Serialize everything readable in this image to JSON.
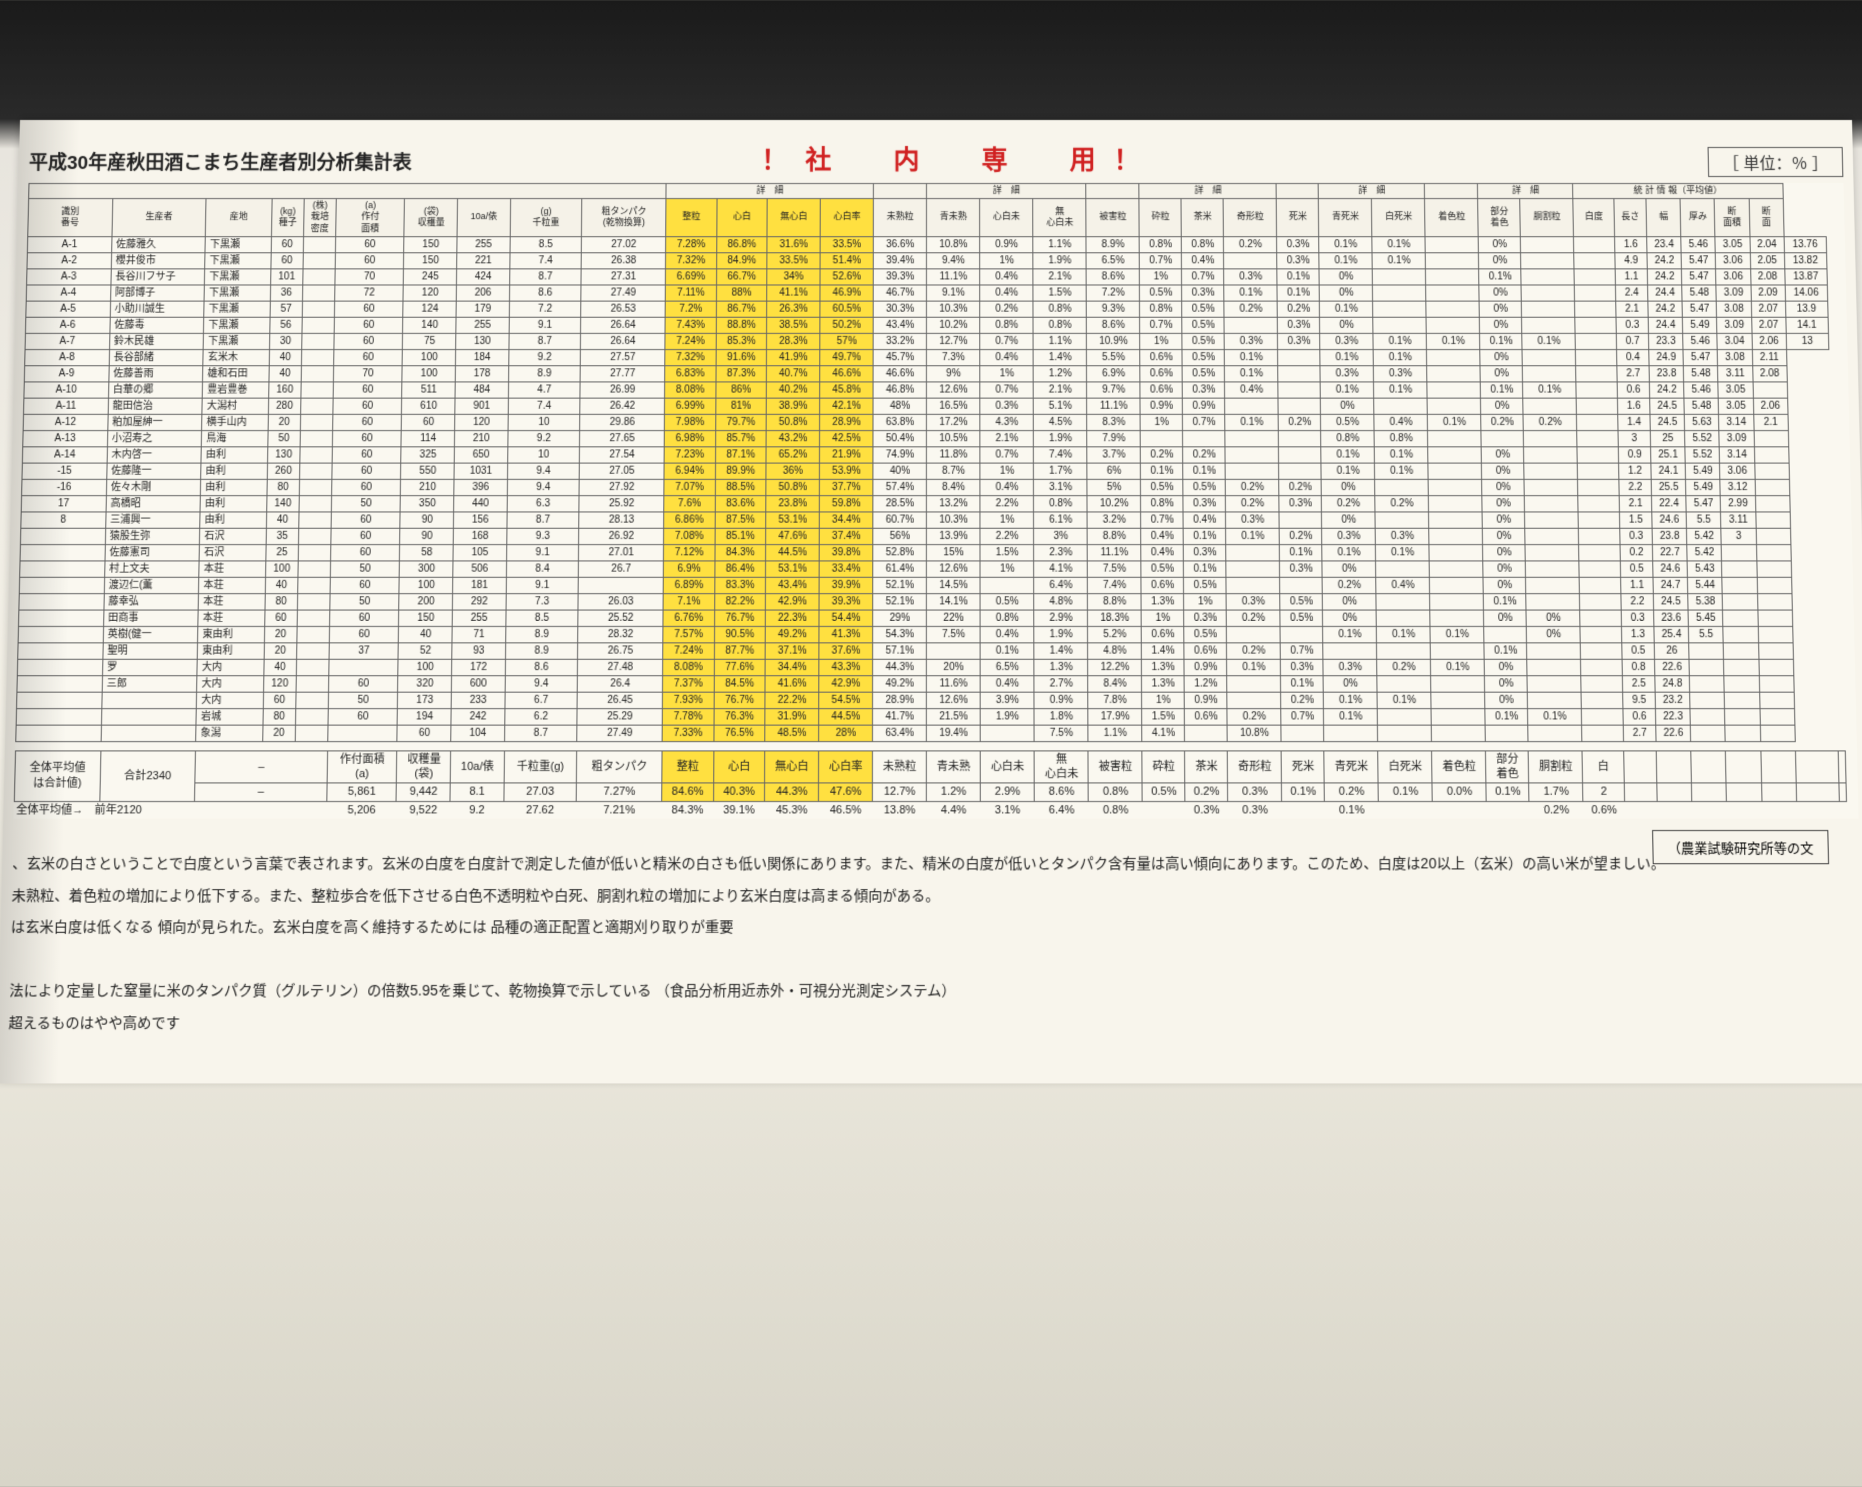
{
  "doc": {
    "title": "平成30年産秋田酒こまち生産者別分析集計表",
    "watermark": "！社　内　専　用！",
    "unit": "［ 単位：％ ］"
  },
  "group_headers": [
    "",
    "詳　細",
    "",
    "詳　細",
    "",
    "詳　細",
    "",
    "詳　細",
    "",
    "詳　細",
    "統 計 情 報（平均値）"
  ],
  "columns": [
    "識別\n番号",
    "生産者",
    "産地",
    "(kg)\n種子",
    "(株)\n栽培\n密度",
    "(a)\n作付\n面積",
    "(袋)\n収穫量",
    "10a/俵",
    "(g)\n千粒重",
    "粗タンパク\n(乾物換算)",
    "整粒",
    "心白",
    "無心白",
    "心白率",
    "未熟粒",
    "青未熟",
    "心白未",
    "無\n心白未",
    "被害粒",
    "砕粒",
    "茶米",
    "奇形粒",
    "死米",
    "青死米",
    "白死米",
    "着色粒",
    "部分\n着色",
    "胴割粒",
    "白度",
    "長さ",
    "幅",
    "厚み",
    "断\n面積",
    "断\n面"
  ],
  "rows": [
    {
      "id": "A-1",
      "name": "佐藤雅久",
      "loc": "下黒瀬",
      "v": [
        60,
        "",
        60,
        150,
        255,
        8.5,
        27.02,
        7.28,
        86.8,
        31.6,
        33.5,
        36.6,
        10.8,
        0.9,
        1.1,
        8.9,
        0.8,
        0.8,
        0.2,
        0.3,
        0.1,
        0.1,
        "",
        0.0,
        "",
        "",
        1.6,
        23.4,
        5.46,
        3.05,
        2.04,
        13.76
      ]
    },
    {
      "id": "A-2",
      "name": "櫻井俊市",
      "loc": "下黒瀬",
      "v": [
        60,
        "",
        60,
        150,
        221,
        7.4,
        26.38,
        7.32,
        84.9,
        33.5,
        51.4,
        39.4,
        9.4,
        1.0,
        1.9,
        6.5,
        0.7,
        0.4,
        "",
        0.3,
        0.1,
        0.1,
        "",
        0.0,
        "",
        "",
        4.9,
        24.2,
        5.47,
        3.06,
        2.05,
        13.82
      ]
    },
    {
      "id": "A-3",
      "name": "長谷川フサ子",
      "loc": "下黒瀬",
      "v": [
        101,
        "",
        70,
        245,
        424,
        8.7,
        27.31,
        6.69,
        66.7,
        34.0,
        52.6,
        39.3,
        11.1,
        0.4,
        2.1,
        8.6,
        1.0,
        0.7,
        0.3,
        0.1,
        0.0,
        "",
        "",
        0.1,
        "",
        "",
        1.1,
        24.2,
        5.47,
        3.06,
        2.08,
        13.87
      ]
    },
    {
      "id": "A-4",
      "name": "阿部博子",
      "loc": "下黒瀬",
      "v": [
        36,
        "",
        72,
        120,
        206,
        8.6,
        27.49,
        7.11,
        88.0,
        41.1,
        46.9,
        46.7,
        9.1,
        0.4,
        1.5,
        7.2,
        0.5,
        0.3,
        0.1,
        0.1,
        0.0,
        "",
        "",
        0.0,
        "",
        "",
        2.4,
        24.4,
        5.48,
        3.09,
        2.09,
        14.06
      ]
    },
    {
      "id": "A-5",
      "name": "小助川誠生",
      "loc": "下黒瀬",
      "v": [
        57,
        "",
        60,
        124,
        179,
        7.2,
        26.53,
        7.2,
        86.7,
        26.3,
        60.5,
        30.3,
        10.3,
        0.2,
        0.8,
        9.3,
        0.8,
        0.5,
        0.2,
        0.2,
        0.1,
        "",
        "",
        0.0,
        "",
        "",
        2.1,
        24.2,
        5.47,
        3.08,
        2.07,
        13.9
      ]
    },
    {
      "id": "A-6",
      "name": "佐藤毒",
      "loc": "下黒瀬",
      "v": [
        56,
        "",
        60,
        140,
        255,
        9.1,
        26.64,
        7.43,
        88.8,
        38.5,
        50.2,
        43.4,
        10.2,
        0.8,
        0.8,
        8.6,
        0.7,
        0.5,
        "",
        0.3,
        0.0,
        "",
        "",
        0.0,
        "",
        "",
        0.3,
        24.4,
        5.49,
        3.09,
        2.07,
        14.1
      ]
    },
    {
      "id": "A-7",
      "name": "鈴木民雄",
      "loc": "下黒瀬",
      "v": [
        30,
        "",
        60,
        75,
        130,
        8.7,
        26.64,
        7.24,
        85.3,
        28.3,
        57.0,
        33.2,
        12.7,
        0.7,
        1.1,
        10.9,
        1.0,
        0.5,
        0.3,
        0.3,
        0.3,
        0.1,
        0.1,
        0.1,
        0.1,
        "",
        0.7,
        23.3,
        5.46,
        3.04,
        2.06,
        13
      ]
    },
    {
      "id": "A-8",
      "name": "長谷部緒",
      "loc": "玄米木",
      "v": [
        40,
        "",
        60,
        100,
        184,
        9.2,
        27.57,
        7.32,
        91.6,
        41.9,
        49.7,
        45.7,
        7.3,
        0.4,
        1.4,
        5.5,
        0.6,
        0.5,
        0.1,
        "",
        0.1,
        0.1,
        "",
        0.0,
        "",
        "",
        0.4,
        24.9,
        5.47,
        3.08,
        2.11
      ]
    },
    {
      "id": "A-9",
      "name": "佐藤善雨",
      "loc": "雄和石田",
      "v": [
        40,
        "",
        70,
        100,
        178,
        8.9,
        27.77,
        6.83,
        87.3,
        40.7,
        46.6,
        46.6,
        9.0,
        1.0,
        1.2,
        6.9,
        0.6,
        0.5,
        0.1,
        "",
        0.3,
        0.3,
        "",
        0.0,
        "",
        "",
        2.7,
        23.8,
        5.48,
        3.11,
        2.08
      ]
    },
    {
      "id": "A-10",
      "name": "白華の郷",
      "loc": "豊岩豊巻",
      "v": [
        160,
        "",
        60,
        511,
        484,
        4.7,
        26.99,
        8.08,
        86.0,
        40.2,
        45.8,
        46.8,
        12.6,
        0.7,
        2.1,
        9.7,
        0.6,
        0.3,
        0.4,
        "",
        0.1,
        0.1,
        "",
        0.1,
        0.1,
        "",
        0.6,
        24.2,
        5.46,
        3.05,
        ""
      ]
    },
    {
      "id": "A-11",
      "name": "龍田信治",
      "loc": "大潟村",
      "v": [
        280,
        "",
        60,
        610,
        901,
        7.4,
        26.42,
        6.99,
        81.0,
        38.9,
        42.1,
        48.0,
        16.5,
        0.3,
        5.1,
        11.1,
        0.9,
        0.9,
        "",
        "",
        0.0,
        "",
        "",
        0.0,
        "",
        "",
        1.6,
        24.5,
        5.48,
        3.05,
        2.06
      ]
    },
    {
      "id": "A-12",
      "name": "粕加屋紳一",
      "loc": "横手山内",
      "v": [
        20,
        "",
        60,
        60,
        120,
        10.0,
        29.86,
        7.98,
        79.7,
        50.8,
        28.9,
        63.8,
        17.2,
        4.3,
        4.5,
        8.3,
        1.0,
        0.7,
        0.1,
        0.2,
        0.5,
        0.4,
        0.1,
        0.2,
        0.2,
        "",
        1.4,
        24.5,
        5.63,
        3.14,
        2.1
      ]
    },
    {
      "id": "A-13",
      "name": "小沼寿之",
      "loc": "鳥海",
      "v": [
        50,
        "",
        60,
        114,
        210,
        9.2,
        27.65,
        6.98,
        85.7,
        43.2,
        42.5,
        50.4,
        10.5,
        2.1,
        1.9,
        7.9,
        "",
        "",
        "",
        "",
        0.8,
        0.8,
        "",
        "",
        "",
        "",
        3.0,
        25.0,
        5.52,
        3.09,
        ""
      ]
    },
    {
      "id": "A-14",
      "name": "木内啓一",
      "loc": "由利",
      "v": [
        130,
        "",
        60,
        325,
        650,
        10.0,
        27.54,
        7.23,
        87.1,
        65.2,
        21.9,
        74.9,
        11.8,
        0.7,
        7.4,
        3.7,
        0.2,
        0.2,
        "",
        "",
        0.1,
        0.1,
        "",
        0.0,
        "",
        "",
        0.9,
        25.1,
        5.52,
        3.14,
        ""
      ]
    },
    {
      "id": "-15",
      "name": "佐藤隆一",
      "loc": "由利",
      "v": [
        260,
        "",
        60,
        550,
        1031,
        9.4,
        27.05,
        6.94,
        89.9,
        36.0,
        53.9,
        40.0,
        8.7,
        1.0,
        1.7,
        6.0,
        0.1,
        0.1,
        "",
        "",
        0.1,
        0.1,
        "",
        0.0,
        "",
        "",
        1.2,
        24.1,
        5.49,
        3.06,
        ""
      ]
    },
    {
      "id": "-16",
      "name": "佐々木剛",
      "loc": "由利",
      "v": [
        80,
        "",
        60,
        210,
        396,
        9.4,
        27.92,
        7.07,
        88.5,
        50.8,
        37.7,
        57.4,
        8.4,
        0.4,
        3.1,
        5.0,
        0.5,
        0.5,
        0.2,
        0.2,
        0.0,
        "",
        "",
        0.0,
        "",
        "",
        2.2,
        25.5,
        5.49,
        3.12,
        ""
      ]
    },
    {
      "id": "17",
      "name": "高橋昭",
      "loc": "由利",
      "v": [
        140,
        "",
        50,
        350,
        440,
        6.3,
        25.92,
        7.6,
        83.6,
        23.8,
        59.8,
        28.5,
        13.2,
        2.2,
        0.8,
        10.2,
        0.8,
        0.3,
        0.2,
        0.3,
        0.2,
        0.2,
        "",
        0.0,
        "",
        "",
        2.1,
        22.4,
        5.47,
        2.99,
        ""
      ]
    },
    {
      "id": "8",
      "name": "三浦興一",
      "loc": "由利",
      "v": [
        40,
        "",
        60,
        90,
        156,
        8.7,
        28.13,
        6.86,
        87.5,
        53.1,
        34.4,
        60.7,
        10.3,
        1.0,
        6.1,
        3.2,
        0.7,
        0.4,
        0.3,
        "",
        0.0,
        "",
        "",
        0.0,
        "",
        "",
        1.5,
        24.6,
        5.5,
        3.11,
        ""
      ]
    },
    {
      "id": "",
      "name": "猿股生弥",
      "loc": "石沢",
      "v": [
        35,
        "",
        60,
        90,
        168,
        9.3,
        26.92,
        7.08,
        85.1,
        47.6,
        37.4,
        56.0,
        13.9,
        2.2,
        3.0,
        8.8,
        0.4,
        0.1,
        0.1,
        0.2,
        0.3,
        0.3,
        "",
        0.0,
        "",
        "",
        0.3,
        23.8,
        5.42,
        3,
        ""
      ]
    },
    {
      "id": "",
      "name": "佐藤憲司",
      "loc": "石沢",
      "v": [
        25,
        "",
        60,
        58,
        105,
        9.1,
        27.01,
        7.12,
        84.3,
        44.5,
        39.8,
        52.8,
        15.0,
        1.5,
        2.3,
        11.1,
        0.4,
        0.3,
        "",
        0.1,
        0.1,
        0.1,
        "",
        0.0,
        "",
        "",
        0.2,
        22.7,
        5.42,
        "",
        ""
      ]
    },
    {
      "id": "",
      "name": "村上文夫",
      "loc": "本荘",
      "v": [
        100,
        "",
        50,
        300,
        506,
        8.4,
        26.7,
        6.9,
        86.4,
        53.1,
        33.4,
        61.4,
        12.6,
        1.0,
        4.1,
        7.5,
        0.5,
        0.1,
        "",
        0.3,
        0.0,
        "",
        "",
        0.0,
        "",
        "",
        0.5,
        24.6,
        5.43,
        "",
        ""
      ]
    },
    {
      "id": "",
      "name": "渡辺仁(薫",
      "loc": "本荘",
      "v": [
        40,
        "",
        60,
        100,
        181,
        9.1,
        "",
        6.89,
        83.3,
        43.4,
        39.9,
        52.1,
        14.5,
        "",
        6.4,
        7.4,
        0.6,
        0.5,
        "",
        "",
        0.2,
        0.4,
        "",
        0.0,
        "",
        "",
        1.1,
        24.7,
        5.44,
        "",
        ""
      ]
    },
    {
      "id": "",
      "name": "藤幸弘",
      "loc": "本荘",
      "v": [
        80,
        "",
        50,
        200,
        292,
        7.3,
        26.03,
        7.1,
        82.2,
        42.9,
        39.3,
        52.1,
        14.1,
        0.5,
        4.8,
        8.8,
        1.3,
        1.0,
        0.3,
        0.5,
        0.0,
        "",
        "",
        0.1,
        "",
        "",
        2.2,
        24.5,
        5.38,
        "",
        ""
      ]
    },
    {
      "id": "",
      "name": "田商事",
      "loc": "本荘",
      "v": [
        60,
        "",
        60,
        150,
        255,
        8.5,
        25.52,
        6.76,
        76.7,
        22.3,
        54.4,
        29.0,
        22.0,
        0.8,
        2.9,
        18.3,
        1.0,
        0.3,
        0.2,
        0.5,
        0.0,
        "",
        "",
        0.0,
        0.0,
        "",
        0.3,
        23.6,
        5.45,
        "",
        ""
      ]
    },
    {
      "id": "",
      "name": "英樹(健一",
      "loc": "東由利",
      "v": [
        20,
        "",
        60,
        40,
        71,
        8.9,
        28.32,
        7.57,
        90.5,
        49.2,
        41.3,
        54.3,
        7.5,
        0.4,
        1.9,
        5.2,
        0.6,
        0.5,
        "",
        "",
        0.1,
        0.1,
        0.1,
        "",
        0.0,
        "",
        1.3,
        25.4,
        5.5,
        "",
        ""
      ]
    },
    {
      "id": "",
      "name": "聖明",
      "loc": "東由利",
      "v": [
        20,
        "",
        37,
        52,
        93,
        8.9,
        26.75,
        7.24,
        87.7,
        37.1,
        37.6,
        57.1,
        "",
        0.1,
        1.4,
        4.8,
        1.4,
        0.6,
        0.2,
        0.7,
        "",
        "",
        "",
        0.1,
        "",
        "",
        0.5,
        26.0,
        "",
        "",
        ""
      ]
    },
    {
      "id": "",
      "name": "罗",
      "loc": "大内",
      "v": [
        40,
        "",
        "",
        100,
        172,
        8.6,
        27.48,
        8.08,
        77.6,
        34.4,
        43.3,
        44.3,
        20.0,
        6.5,
        1.3,
        12.2,
        1.3,
        0.9,
        0.1,
        0.3,
        0.3,
        0.2,
        0.1,
        0.0,
        "",
        "",
        0.8,
        22.6,
        "",
        "",
        ""
      ]
    },
    {
      "id": "",
      "name": "三郎",
      "loc": "大内",
      "v": [
        120,
        "",
        60,
        320,
        600,
        9.4,
        26.4,
        7.37,
        84.5,
        41.6,
        42.9,
        49.2,
        11.6,
        0.4,
        2.7,
        8.4,
        1.3,
        1.2,
        "",
        0.1,
        0.0,
        "",
        "",
        0.0,
        "",
        "",
        2.5,
        24.8,
        "",
        "",
        ""
      ]
    },
    {
      "id": "",
      "name": "",
      "loc": "大内",
      "v": [
        60,
        "",
        50,
        173,
        233,
        6.7,
        26.45,
        7.93,
        76.7,
        22.2,
        54.5,
        28.9,
        12.6,
        3.9,
        0.9,
        7.8,
        1.0,
        0.9,
        "",
        0.2,
        0.1,
        0.1,
        "",
        0.0,
        "",
        "",
        9.5,
        23.2,
        "",
        "",
        ""
      ]
    },
    {
      "id": "",
      "name": "",
      "loc": "岩城",
      "v": [
        80,
        "",
        60,
        194,
        242,
        6.2,
        25.29,
        7.78,
        76.3,
        31.9,
        44.5,
        41.7,
        21.5,
        1.9,
        1.8,
        17.9,
        1.5,
        0.6,
        0.2,
        0.7,
        0.1,
        "",
        "",
        0.1,
        0.1,
        "",
        0.6,
        22.3,
        "",
        "",
        ""
      ]
    },
    {
      "id": "",
      "name": "",
      "loc": "象潟",
      "v": [
        20,
        "",
        "",
        60,
        104,
        8.7,
        27.49,
        7.33,
        76.5,
        48.5,
        28.0,
        63.4,
        19.4,
        "",
        7.5,
        1.1,
        4.1,
        "",
        10.8,
        "",
        "",
        "",
        "",
        "",
        "",
        "",
        2.7,
        22.6,
        "",
        "",
        ""
      ]
    }
  ],
  "summary": {
    "label1": "全体平均値\nは合計値)",
    "total_label": "合計2340",
    "row1_headers": [
      "作付面積\n(a)",
      "収穫量\n(袋)",
      "10a/俵",
      "千粒重(g)",
      "粗タンパク",
      "整粒",
      "心白",
      "無心白",
      "心白率",
      "未熟粒",
      "青未熟",
      "心白未",
      "無\n心白未",
      "被害粒",
      "砕粒",
      "茶米",
      "奇形粒",
      "死米",
      "青死米",
      "白死米",
      "着色粒",
      "部分\n着色",
      "胴割粒",
      "白"
    ],
    "row2_values": [
      "5,861",
      "9,442",
      "8.1",
      "27.03",
      "7.27%",
      "84.6%",
      "40.3%",
      "44.3%",
      "47.6%",
      "12.7%",
      "1.2%",
      "2.9%",
      "8.6%",
      "0.8%",
      "0.5%",
      "0.2%",
      "0.3%",
      "0.1%",
      "0.2%",
      "0.1%",
      "0.0%",
      "0.1%",
      "1.7%",
      "2"
    ],
    "prev_label": "全体平均値→　前年2120",
    "prev_values": [
      "5,206",
      "9,522",
      "9.2",
      "27.62",
      "7.21%",
      "84.3%",
      "39.1%",
      "45.3%",
      "46.5%",
      "13.8%",
      "4.4%",
      "3.1%",
      "6.4%",
      "0.8%",
      "",
      "0.3%",
      "0.3%",
      "",
      "0.1%",
      "",
      "",
      "",
      "0.2%",
      "0.6%"
    ]
  },
  "notes": {
    "n1": "、玄米の白さということで白度という言葉で表されます。玄米の白度を白度計で測定した値が低いと精米の白さも低い関係にあります。また、精米の白度が低いとタンパク含有量は高い傾向にあります。このため、白度は20以上（玄米）の高い米が望ましい。",
    "n2": "未熟粒、着色粒の増加により低下する。また、整粒歩合を低下させる白色不透明粒や白死、胴割れ粒の増加により玄米白度は高まる傾向がある。",
    "n3": "は玄米白度は低くなる 傾向が見られた。玄米白度を高く維持するためには 品種の適正配置と適期刈り取りが重要",
    "n4": "法により定量した窒量に米のタンパク質（グルテリン）の倍数5.95を乗じて、乾物換算で示している （食品分析用近赤外・可視分光測定システム）",
    "n5": "超えるものはやや高めです",
    "stamp": "（農業試験研究所等の文"
  }
}
